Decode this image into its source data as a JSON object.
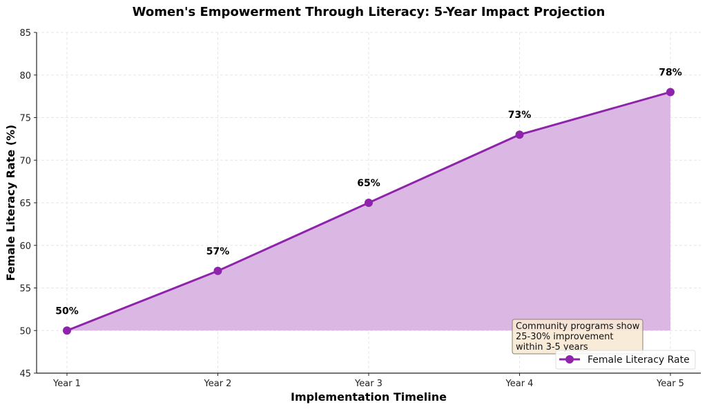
{
  "chart_data": {
    "type": "line",
    "title": "Women's Empowerment Through Literacy: 5-Year Impact Projection",
    "xlabel": "Implementation Timeline",
    "ylabel": "Female Literacy Rate (%)",
    "categories": [
      "Year 1",
      "Year 2",
      "Year 3",
      "Year 4",
      "Year 5"
    ],
    "series": [
      {
        "name": "Female Literacy Rate",
        "values": [
          50,
          57,
          65,
          73,
          78
        ],
        "color": "#8e24aa"
      }
    ],
    "data_labels": [
      "50%",
      "57%",
      "65%",
      "73%",
      "78%"
    ],
    "ylim": [
      45,
      85
    ],
    "yticks": [
      "45",
      "50",
      "55",
      "60",
      "65",
      "70",
      "75",
      "80",
      "85"
    ],
    "fill_baseline": 50,
    "fill_color": "#dbb8e4",
    "grid": true,
    "legend_position": "lower right",
    "annotation": [
      "Community programs show",
      "25-30% improvement",
      "within 3-5 years"
    ]
  }
}
